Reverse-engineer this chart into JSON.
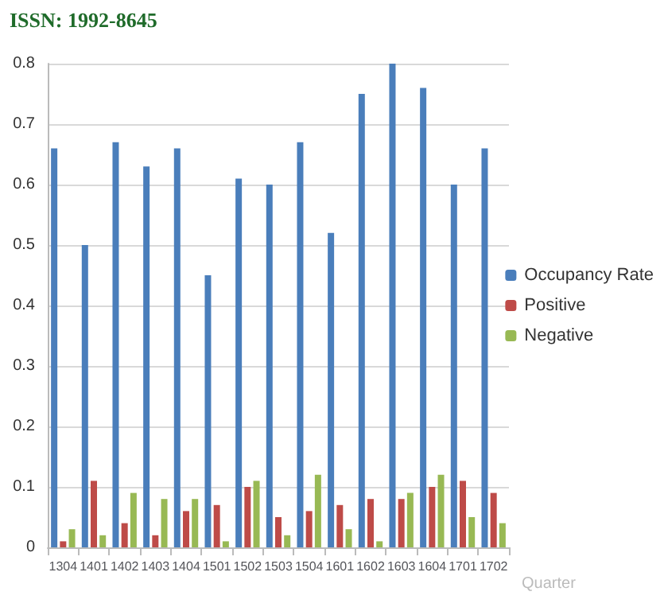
{
  "chart_data": {
    "type": "bar",
    "xlabel": "Quarter",
    "annotations": [
      "ISSN: 1992-8645"
    ],
    "categories": [
      "1304",
      "1401",
      "1402",
      "1403",
      "1404",
      "1501",
      "1502",
      "1503",
      "1504",
      "1601",
      "1602",
      "1603",
      "1604",
      "1701",
      "1702"
    ],
    "series": [
      {
        "name": "Occupancy Rate",
        "color": "#4a7ebb",
        "values": [
          0.66,
          0.5,
          0.67,
          0.63,
          0.66,
          0.45,
          0.61,
          0.6,
          0.67,
          0.52,
          0.75,
          0.8,
          0.76,
          0.6,
          0.66
        ]
      },
      {
        "name": "Positive",
        "color": "#be4b48",
        "values": [
          0.01,
          0.11,
          0.04,
          0.02,
          0.06,
          0.07,
          0.1,
          0.05,
          0.06,
          0.07,
          0.08,
          0.08,
          0.1,
          0.11,
          0.09
        ]
      },
      {
        "name": "Negative",
        "color": "#98b954",
        "values": [
          0.03,
          0.02,
          0.09,
          0.08,
          0.08,
          0.01,
          0.11,
          0.02,
          0.12,
          0.03,
          0.01,
          0.09,
          0.12,
          0.05,
          0.04
        ]
      }
    ],
    "ylim": [
      0,
      0.8
    ],
    "yticks": [
      0,
      0.1,
      0.2,
      0.3,
      0.4,
      0.5,
      0.6,
      0.7,
      0.8
    ],
    "grid": "y",
    "legend": "right"
  }
}
